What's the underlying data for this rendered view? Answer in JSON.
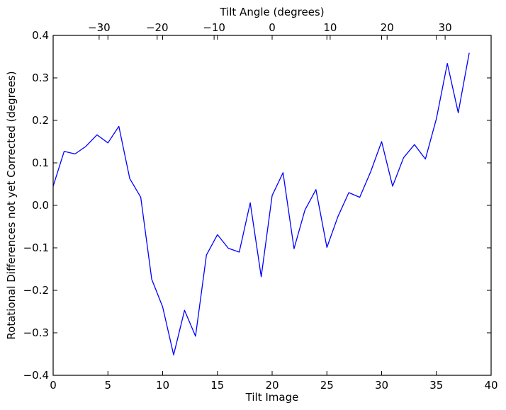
{
  "chart_data": {
    "type": "line",
    "xlabel": "Tilt Image",
    "ylabel": "Rotational Differences not yet Corrected (degrees)",
    "top_xlabel": "Tilt Angle (degrees)",
    "xlim": [
      0,
      40
    ],
    "ylim": [
      -0.4,
      0.4
    ],
    "x_ticks": [
      "0",
      "5",
      "10",
      "15",
      "20",
      "25",
      "30",
      "35",
      "40"
    ],
    "y_ticks": [
      "0.4",
      "0.3",
      "0.2",
      "0.1",
      "0.0",
      "−0.1",
      "−0.2",
      "−0.3",
      "−0.4"
    ],
    "top_ticks": [
      {
        "label": "−30",
        "image": 4.2
      },
      {
        "label": "−20",
        "image": 9.5
      },
      {
        "label": "−10",
        "image": 14.7
      },
      {
        "label": "0",
        "image": 20.0
      },
      {
        "label": "10",
        "image": 25.3
      },
      {
        "label": "20",
        "image": 30.5
      },
      {
        "label": "30",
        "image": 35.8
      }
    ],
    "grid": false,
    "legend": "none",
    "line_color": "#0000ff",
    "series": [
      {
        "x": [
          0,
          1,
          2,
          3,
          4,
          5,
          6,
          7,
          8,
          9,
          10,
          11,
          12,
          13,
          14,
          15,
          16,
          17,
          18,
          19,
          20,
          21,
          22,
          23,
          24,
          25,
          26,
          27,
          28,
          29,
          30,
          31,
          32,
          33,
          34,
          35,
          36,
          37,
          38
        ],
        "values": [
          0.045,
          0.127,
          0.121,
          0.139,
          0.166,
          0.147,
          0.186,
          0.063,
          0.019,
          -0.174,
          -0.239,
          -0.352,
          -0.247,
          -0.308,
          -0.117,
          -0.069,
          -0.101,
          -0.11,
          0.006,
          -0.168,
          0.023,
          0.077,
          -0.102,
          -0.011,
          0.037,
          -0.099,
          -0.027,
          0.03,
          0.019,
          0.079,
          0.15,
          0.045,
          0.112,
          0.143,
          0.109,
          0.204,
          0.334,
          0.218,
          0.359
        ]
      }
    ]
  }
}
